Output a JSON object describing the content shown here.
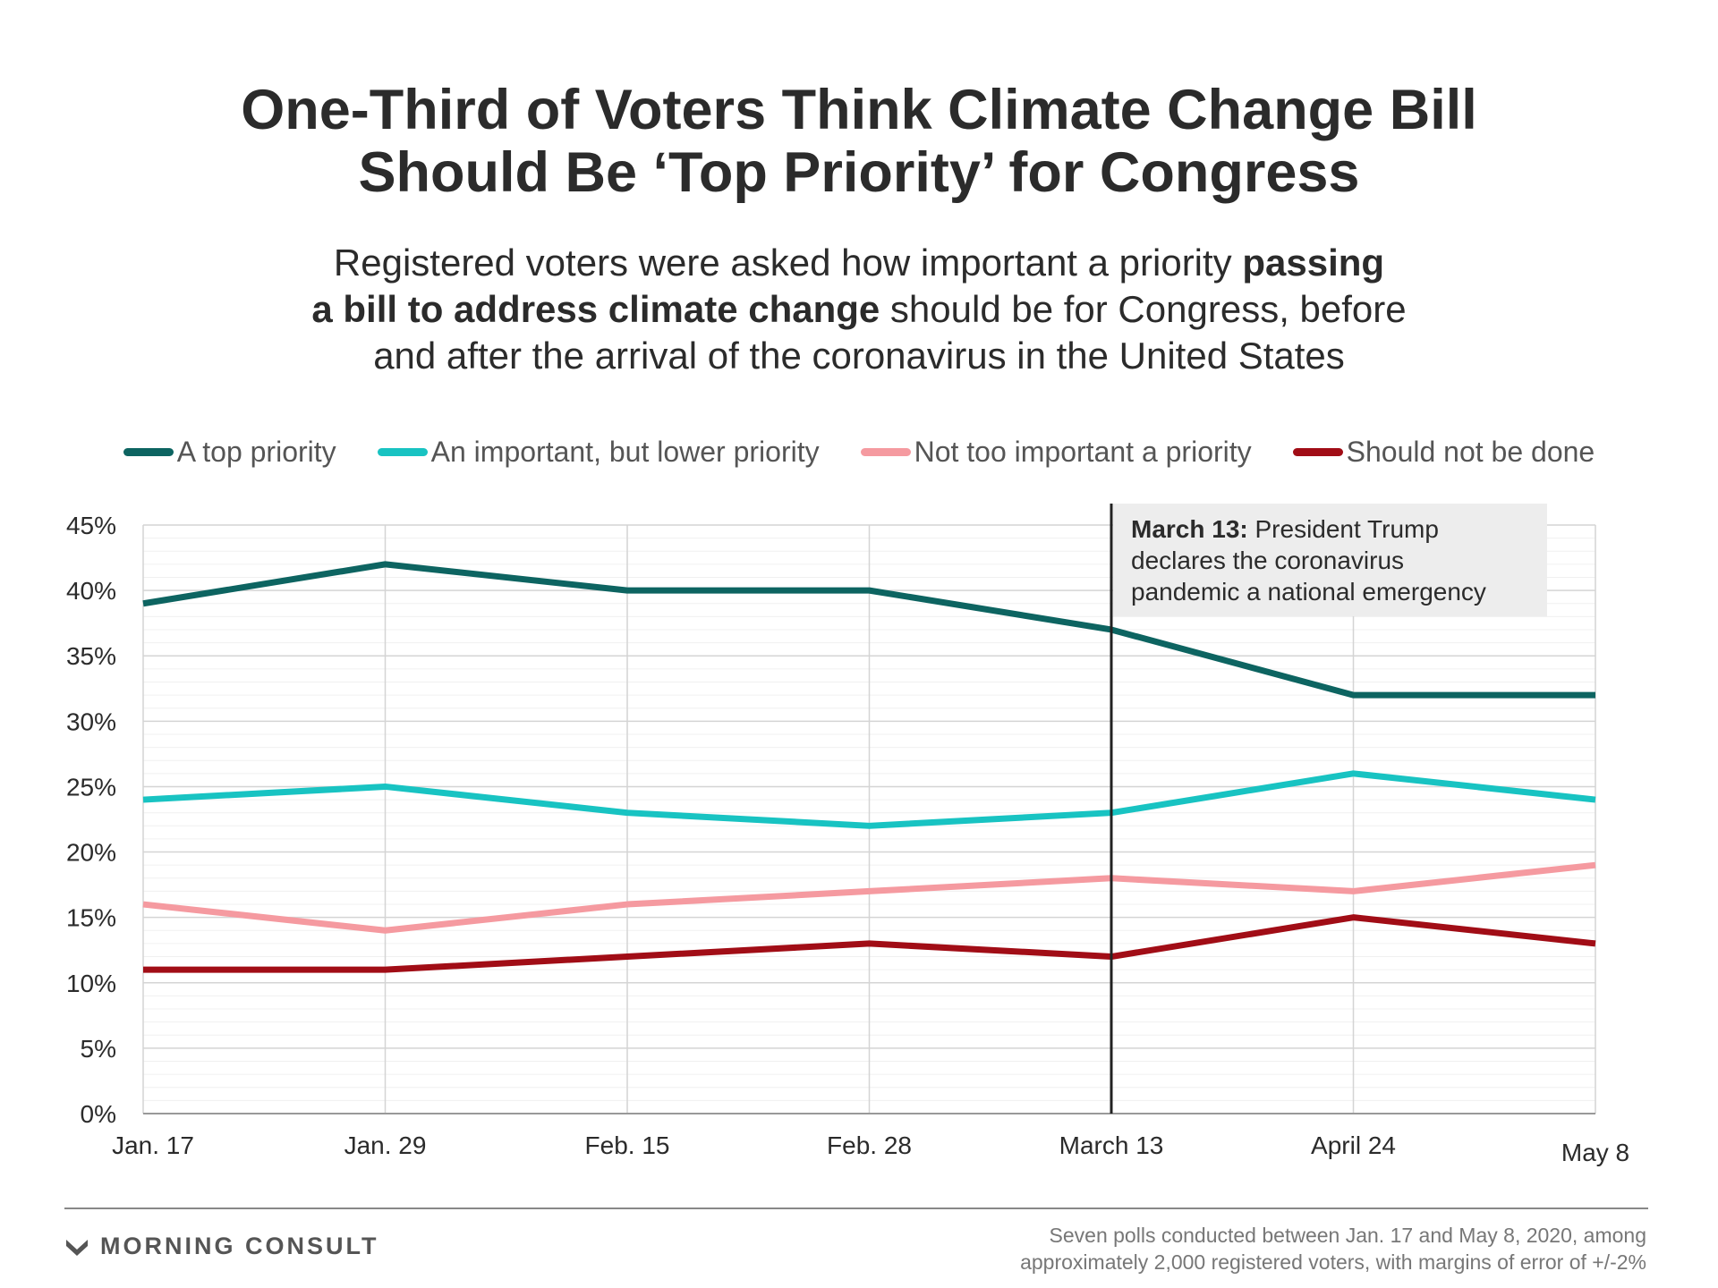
{
  "title": {
    "line1": "One-Third of Voters Think Climate Change Bill",
    "line2": "Should Be ‘Top Priority’ for Congress"
  },
  "subtitle": {
    "line1_pre": "Registered voters were asked how important a priority ",
    "line1_bold": "passing",
    "line2_bold": "a bill to address climate change",
    "line2_post": " should be for Congress, before",
    "line3": "and after the arrival of the coronavirus in the United States"
  },
  "legend": [
    {
      "label": "A top priority",
      "color": "#0d6461"
    },
    {
      "label": "An important, but lower priority",
      "color": "#18c3c2"
    },
    {
      "label": "Not too important a priority",
      "color": "#f59aa0"
    },
    {
      "label": "Should not be done",
      "color": "#a10d16"
    }
  ],
  "annotation": {
    "bold": "March 13:",
    "line1_rest": " President Trump",
    "line2": "declares the coronavirus",
    "line3": "pandemic a national emergency"
  },
  "brand": {
    "name": "MORNING CONSULT"
  },
  "footnote": {
    "line1": "Seven polls conducted between Jan. 17 and May 8, 2020, among",
    "line2": "approximately 2,000 registered voters, with margins of error of +/-2%"
  },
  "chart_data": {
    "type": "line",
    "x": [
      "Jan. 17",
      "Jan. 29",
      "Feb. 15",
      "Feb. 28",
      "March 13",
      "April 24",
      "May 8"
    ],
    "ylim": [
      0,
      45
    ],
    "yticks": [
      0,
      5,
      10,
      15,
      20,
      25,
      30,
      35,
      40,
      45
    ],
    "ytick_labels": [
      "0%",
      "5%",
      "10%",
      "15%",
      "20%",
      "25%",
      "30%",
      "35%",
      "40%",
      "45%"
    ],
    "grid": true,
    "legend_position": "top",
    "event_marker": {
      "x": "March 13"
    },
    "series": [
      {
        "name": "A top priority",
        "color": "#0d6461",
        "values": [
          39,
          42,
          40,
          40,
          37,
          32,
          32
        ]
      },
      {
        "name": "An important, but lower priority",
        "color": "#18c3c2",
        "values": [
          24,
          25,
          23,
          22,
          23,
          26,
          24
        ]
      },
      {
        "name": "Not too important a priority",
        "color": "#f59aa0",
        "values": [
          16,
          14,
          16,
          17,
          18,
          17,
          19
        ]
      },
      {
        "name": "Should not be done",
        "color": "#a10d16",
        "values": [
          11,
          11,
          12,
          13,
          12,
          15,
          13
        ]
      }
    ]
  }
}
